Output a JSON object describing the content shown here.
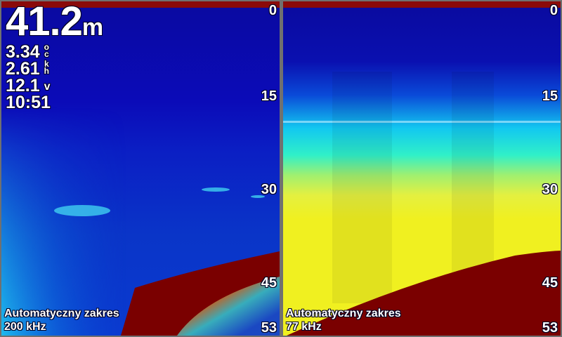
{
  "overlay": {
    "depth_value": "41.2",
    "depth_unit": "m",
    "water_temp": {
      "value": "3.34",
      "unit_top": "o",
      "unit_bottom": "c"
    },
    "speed": {
      "value": "2.61",
      "unit_top": "k",
      "unit_bottom": "h"
    },
    "voltage": {
      "value": "12.1",
      "unit": "v"
    },
    "time": "10:51"
  },
  "panels": [
    {
      "frequency": "200 kHz",
      "range_mode": "Automatyczny zakres",
      "scale": [
        "0",
        "15",
        "30",
        "45",
        "53"
      ]
    },
    {
      "frequency": "77 kHz",
      "range_mode": "Automatyczny zakres",
      "scale": [
        "0",
        "15",
        "30",
        "45",
        "53"
      ]
    }
  ],
  "colors": {
    "water": "#0b0bb8",
    "bottom": "#7a0000",
    "high_gain": "#f0f020",
    "frame": "#707070"
  }
}
